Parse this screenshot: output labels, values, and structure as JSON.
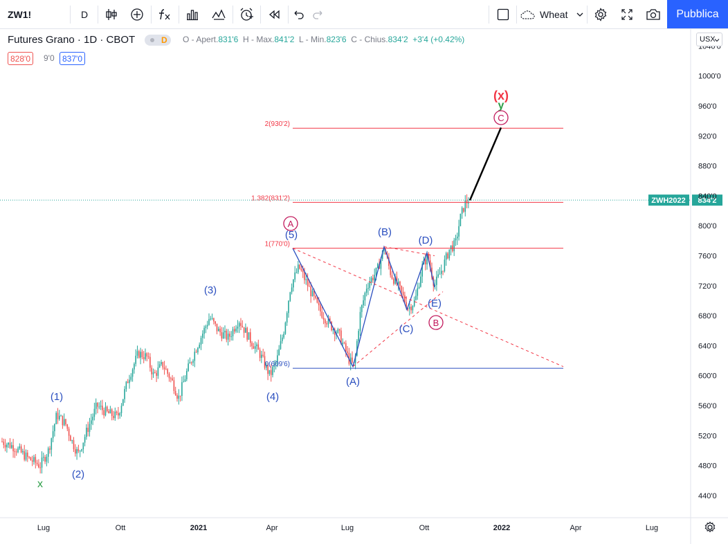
{
  "toolbar": {
    "symbol": "ZW1!",
    "interval": "D",
    "indicators_icon": "fx-icon",
    "alert_icon": "alarm-icon",
    "watchlist_name": "Wheat",
    "publish_label": "Pubblica"
  },
  "legend": {
    "title": "Futures Grano · 1D · CBOT",
    "delay_badge": "D",
    "open_label": "O - Apert.",
    "open_value": "831'6",
    "high_label": "H - Max.",
    "high_value": "841'2",
    "low_label": "L - Min.",
    "low_value": "823'6",
    "close_label": "C - Chius.",
    "close_value": "834'2",
    "change": "+3'4 (+0.42%)",
    "bid": "828'0",
    "spread": "9'0",
    "ask": "837'0"
  },
  "currency": "USX",
  "price_axis": {
    "ticks": [
      {
        "label": "1040'0",
        "value": 1040
      },
      {
        "label": "1000'0",
        "value": 1000
      },
      {
        "label": "960'0",
        "value": 960
      },
      {
        "label": "920'0",
        "value": 920
      },
      {
        "label": "880'0",
        "value": 880
      },
      {
        "label": "840'0",
        "value": 840
      },
      {
        "label": "800'0",
        "value": 800
      },
      {
        "label": "760'0",
        "value": 760
      },
      {
        "label": "720'0",
        "value": 720
      },
      {
        "label": "680'0",
        "value": 680
      },
      {
        "label": "640'0",
        "value": 640
      },
      {
        "label": "600'0",
        "value": 600
      },
      {
        "label": "560'0",
        "value": 560
      },
      {
        "label": "520'0",
        "value": 520
      },
      {
        "label": "480'0",
        "value": 480
      },
      {
        "label": "440'0",
        "value": 440
      }
    ],
    "last_price_symbol": "ZWH2022",
    "last_price": "834'2",
    "last_price_value": 834.25
  },
  "time_axis": {
    "labels": [
      "Lug",
      "Ott",
      "2021",
      "Apr",
      "Lug",
      "Ott",
      "2022",
      "Apr",
      "Lug"
    ]
  },
  "chart_data": {
    "type": "candlestick",
    "price_min": 420,
    "price_max": 1050,
    "fib_levels": [
      {
        "label": "2(930'2)",
        "value": 930.25,
        "color": "#f23645"
      },
      {
        "label": "1.382(831'2)",
        "value": 831.25,
        "color": "#f23645"
      },
      {
        "label": "1(770'0)",
        "value": 770.0,
        "color": "#f23645"
      },
      {
        "label": "0(609'6)",
        "value": 609.75,
        "color": "#2a4ebf"
      }
    ],
    "wave_labels": [
      {
        "text": "x",
        "color": "#2e9f49"
      },
      {
        "text": "(1)",
        "color": "#2a4ebf"
      },
      {
        "text": "(2)",
        "color": "#2a4ebf"
      },
      {
        "text": "(3)",
        "color": "#2a4ebf"
      },
      {
        "text": "(4)",
        "color": "#2a4ebf"
      },
      {
        "text": "(5)",
        "color": "#2a4ebf"
      },
      {
        "text": "(A)",
        "color": "#2a4ebf"
      },
      {
        "text": "(B)",
        "color": "#2a4ebf"
      },
      {
        "text": "(C)",
        "color": "#2a4ebf"
      },
      {
        "text": "(D)",
        "color": "#2a4ebf"
      },
      {
        "text": "(E)",
        "color": "#2a4ebf"
      },
      {
        "text": "(x)",
        "color": "#f23645"
      },
      {
        "text": "y",
        "color": "#2e9f49"
      }
    ],
    "circled_labels": [
      {
        "text": "A",
        "color": "#c2185b"
      },
      {
        "text": "B",
        "color": "#c2185b"
      },
      {
        "text": "C",
        "color": "#c2185b"
      }
    ],
    "colors": {
      "up": "#26a69a",
      "down": "#ef5350",
      "projection": "#000000",
      "triangle": "#2a4ebf",
      "trendline": "#f23645"
    }
  }
}
